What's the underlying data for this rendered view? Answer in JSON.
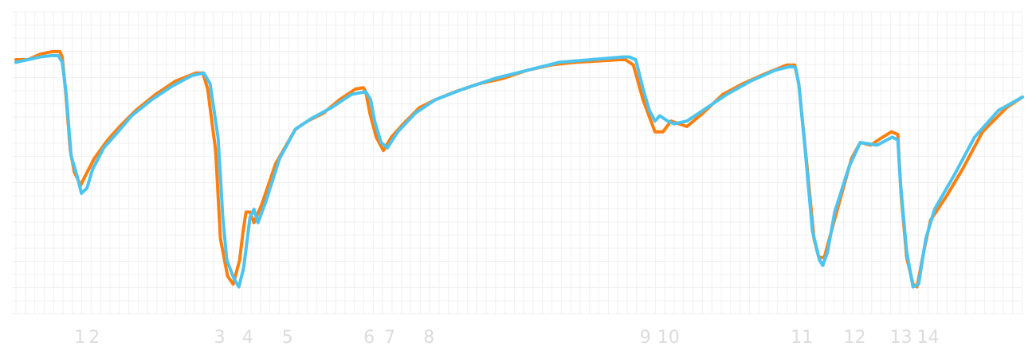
{
  "chart_data": {
    "type": "line",
    "title": "",
    "xlabel": "",
    "ylabel": "",
    "grid": true,
    "legend": "none",
    "xlim": [
      0,
      126
    ],
    "ylim": [
      0,
      100
    ],
    "x_ticks": [
      {
        "x": 8,
        "label": "1"
      },
      {
        "x": 9.8,
        "label": "2"
      },
      {
        "x": 25.5,
        "label": "3"
      },
      {
        "x": 29,
        "label": "4"
      },
      {
        "x": 34,
        "label": "5"
      },
      {
        "x": 44.2,
        "label": "6"
      },
      {
        "x": 46.8,
        "label": "7"
      },
      {
        "x": 51.7,
        "label": "8"
      },
      {
        "x": 78.8,
        "label": "9"
      },
      {
        "x": 81.7,
        "label": "10"
      },
      {
        "x": 98.4,
        "label": "11"
      },
      {
        "x": 105,
        "label": "12"
      },
      {
        "x": 110.8,
        "label": "13"
      },
      {
        "x": 114.2,
        "label": "14"
      }
    ],
    "colors": {
      "orange": "#ff7f0e",
      "blue": "#4cc4f0",
      "grid": "#f0f0f0",
      "tick_text": "#dcdcdc"
    },
    "series": [
      {
        "color": "#ff7f0e",
        "points": [
          [
            0,
            89
          ],
          [
            1.5,
            89
          ],
          [
            3,
            91
          ],
          [
            4.5,
            92
          ],
          [
            5.5,
            92
          ],
          [
            5.8,
            90
          ],
          [
            6.2,
            78
          ],
          [
            6.8,
            55
          ],
          [
            7.3,
            47
          ],
          [
            8.1,
            42
          ],
          [
            8.6,
            45
          ],
          [
            9.8,
            52
          ],
          [
            11.5,
            59
          ],
          [
            13,
            64
          ],
          [
            15,
            70
          ],
          [
            17.5,
            76
          ],
          [
            20,
            81
          ],
          [
            22.5,
            84
          ],
          [
            23.4,
            84
          ],
          [
            24,
            78
          ],
          [
            25,
            55
          ],
          [
            25.6,
            22
          ],
          [
            26.5,
            8
          ],
          [
            27.2,
            5
          ],
          [
            28,
            14
          ],
          [
            28.4,
            24
          ],
          [
            28.8,
            32
          ],
          [
            29.3,
            32
          ],
          [
            29.8,
            28
          ],
          [
            30.8,
            35
          ],
          [
            32.5,
            50
          ],
          [
            35,
            63
          ],
          [
            36.5,
            66
          ],
          [
            38.5,
            69
          ],
          [
            40.5,
            74
          ],
          [
            42.5,
            78
          ],
          [
            43.5,
            78.5
          ],
          [
            43.8,
            77
          ],
          [
            44.3,
            69
          ],
          [
            45.1,
            60
          ],
          [
            46,
            55
          ],
          [
            47,
            60
          ],
          [
            48.5,
            65
          ],
          [
            50.5,
            71
          ],
          [
            52.5,
            74
          ],
          [
            55,
            77
          ],
          [
            58,
            80
          ],
          [
            61,
            82
          ],
          [
            64,
            85
          ],
          [
            67,
            87
          ],
          [
            70,
            88
          ],
          [
            73,
            88.5
          ],
          [
            75.5,
            89
          ],
          [
            76.3,
            89
          ],
          [
            77.3,
            87
          ],
          [
            78.5,
            74
          ],
          [
            80,
            62
          ],
          [
            81,
            62
          ],
          [
            82,
            66
          ],
          [
            84,
            64
          ],
          [
            86,
            69
          ],
          [
            88.5,
            76
          ],
          [
            91,
            80
          ],
          [
            94,
            84
          ],
          [
            96.5,
            87
          ],
          [
            97.5,
            87
          ],
          [
            98,
            80
          ],
          [
            99,
            50
          ],
          [
            99.9,
            22
          ],
          [
            100.5,
            15
          ],
          [
            101.2,
            15
          ],
          [
            102.1,
            25
          ],
          [
            103.2,
            37
          ],
          [
            104.6,
            52
          ],
          [
            105.7,
            58
          ],
          [
            107,
            57
          ],
          [
            108.5,
            60
          ],
          [
            109.6,
            62
          ],
          [
            110.4,
            61
          ],
          [
            110.8,
            39
          ],
          [
            111.5,
            15
          ],
          [
            112.3,
            5
          ],
          [
            112.8,
            4
          ],
          [
            113.7,
            18
          ],
          [
            114.5,
            29
          ],
          [
            116.5,
            38
          ],
          [
            118.5,
            48
          ],
          [
            121,
            62
          ],
          [
            124,
            71
          ],
          [
            126,
            75
          ]
        ]
      },
      {
        "color": "#4cc4f0",
        "points": [
          [
            0,
            88
          ],
          [
            1.5,
            89
          ],
          [
            3,
            90
          ],
          [
            4.5,
            90.5
          ],
          [
            5.3,
            90.5
          ],
          [
            5.8,
            88
          ],
          [
            6.3,
            76
          ],
          [
            6.9,
            53
          ],
          [
            7.7,
            45
          ],
          [
            8.2,
            39
          ],
          [
            8.9,
            41
          ],
          [
            9.6,
            48
          ],
          [
            11,
            56
          ],
          [
            12.5,
            61
          ],
          [
            14.5,
            68
          ],
          [
            17,
            74
          ],
          [
            19.5,
            79
          ],
          [
            22,
            83
          ],
          [
            23.5,
            84
          ],
          [
            24.3,
            80
          ],
          [
            25.3,
            60
          ],
          [
            25.9,
            30
          ],
          [
            26.4,
            14
          ],
          [
            27.3,
            7
          ],
          [
            27.9,
            4
          ],
          [
            28.5,
            11
          ],
          [
            29.3,
            30
          ],
          [
            29.8,
            33
          ],
          [
            30.3,
            28
          ],
          [
            31.3,
            36
          ],
          [
            33,
            52
          ],
          [
            35,
            63
          ],
          [
            37,
            67
          ],
          [
            39.5,
            71
          ],
          [
            42,
            76
          ],
          [
            43.8,
            77
          ],
          [
            44.4,
            74
          ],
          [
            44.9,
            66
          ],
          [
            45.7,
            58
          ],
          [
            46.5,
            56
          ],
          [
            47.8,
            62
          ],
          [
            50,
            69
          ],
          [
            52.5,
            74
          ],
          [
            56,
            78
          ],
          [
            60,
            82
          ],
          [
            64,
            85
          ],
          [
            68,
            88
          ],
          [
            72,
            89
          ],
          [
            76,
            90
          ],
          [
            76.8,
            90
          ],
          [
            77.6,
            89
          ],
          [
            78.5,
            78
          ],
          [
            79.3,
            70
          ],
          [
            80,
            66
          ],
          [
            80.6,
            68
          ],
          [
            81.6,
            66
          ],
          [
            82.4,
            65
          ],
          [
            84,
            66
          ],
          [
            86.5,
            71
          ],
          [
            89,
            76
          ],
          [
            92,
            81
          ],
          [
            95,
            85
          ],
          [
            97,
            86.5
          ],
          [
            97.6,
            86
          ],
          [
            98,
            80
          ],
          [
            98.8,
            55
          ],
          [
            99.7,
            25
          ],
          [
            100.6,
            14
          ],
          [
            101,
            12
          ],
          [
            101.6,
            17
          ],
          [
            102.5,
            32
          ],
          [
            104.3,
            49
          ],
          [
            105.7,
            58
          ],
          [
            107.8,
            57
          ],
          [
            109.7,
            60
          ],
          [
            110.4,
            59
          ],
          [
            110.7,
            44
          ],
          [
            111.5,
            17
          ],
          [
            112.3,
            4
          ],
          [
            113,
            5
          ],
          [
            113.9,
            22
          ],
          [
            115,
            33
          ],
          [
            117.5,
            46
          ],
          [
            120,
            60
          ],
          [
            123,
            70
          ],
          [
            126,
            75
          ]
        ]
      }
    ]
  }
}
